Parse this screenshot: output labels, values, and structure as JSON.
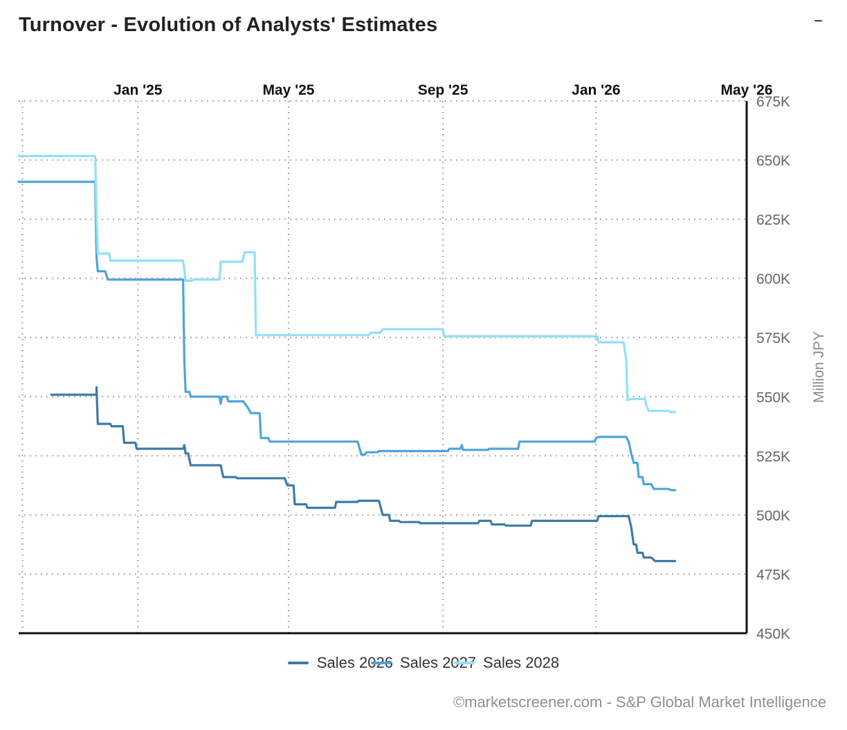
{
  "header": {
    "title": "Turnover - Evolution of Analysts' Estimates",
    "minimize_label": "–"
  },
  "footer": {
    "credit": "©marketscreener.com - S&P Global Market Intelligence"
  },
  "chart_data": {
    "type": "line",
    "title": "Turnover - Evolution of Analysts' Estimates",
    "ylabel": "Million JPY",
    "xlabel": "",
    "x_axis_position": "top",
    "y_axis_position": "right",
    "grid": true,
    "legend_placement": "bottom-center",
    "xlim": [
      "2024-09-28",
      "2026-05-01"
    ],
    "ylim": [
      450000,
      675000
    ],
    "x_ticks": [
      {
        "date": "2025-01-01",
        "label": "Jan '25"
      },
      {
        "date": "2025-05-01",
        "label": "May '25"
      },
      {
        "date": "2025-09-01",
        "label": "Sep '25"
      },
      {
        "date": "2026-01-01",
        "label": "Jan '26"
      },
      {
        "date": "2026-05-01",
        "label": "May '26"
      }
    ],
    "y_ticks": [
      {
        "value": 450000,
        "label": "450K"
      },
      {
        "value": 475000,
        "label": "475K"
      },
      {
        "value": 500000,
        "label": "500K"
      },
      {
        "value": 525000,
        "label": "525K"
      },
      {
        "value": 550000,
        "label": "550K"
      },
      {
        "value": 575000,
        "label": "575K"
      },
      {
        "value": 600000,
        "label": "600K"
      },
      {
        "value": 625000,
        "label": "625K"
      },
      {
        "value": 650000,
        "label": "650K"
      },
      {
        "value": 675000,
        "label": "675K"
      }
    ],
    "series": [
      {
        "name": "Sales 2026",
        "color": "#3d7aa8",
        "points": [
          [
            "2024-10-24",
            550800
          ],
          [
            "2024-11-29",
            550800
          ],
          [
            "2024-11-29",
            554000
          ],
          [
            "2024-11-30",
            538500
          ],
          [
            "2024-12-10",
            538500
          ],
          [
            "2024-12-11",
            537500
          ],
          [
            "2024-12-20",
            537500
          ],
          [
            "2024-12-21",
            530500
          ],
          [
            "2024-12-30",
            530500
          ],
          [
            "2024-12-31",
            528000
          ],
          [
            "2025-02-06",
            528000
          ],
          [
            "2025-02-07",
            529500
          ],
          [
            "2025-02-08",
            526000
          ],
          [
            "2025-02-10",
            526000
          ],
          [
            "2025-02-12",
            521000
          ],
          [
            "2025-03-08",
            521000
          ],
          [
            "2025-03-10",
            516000
          ],
          [
            "2025-03-20",
            516000
          ],
          [
            "2025-03-21",
            515500
          ],
          [
            "2025-04-28",
            515500
          ],
          [
            "2025-04-30",
            512500
          ],
          [
            "2025-05-05",
            512500
          ],
          [
            "2025-05-06",
            504500
          ],
          [
            "2025-05-15",
            504500
          ],
          [
            "2025-05-16",
            503000
          ],
          [
            "2025-06-07",
            503000
          ],
          [
            "2025-06-08",
            505500
          ],
          [
            "2025-06-25",
            505500
          ],
          [
            "2025-06-26",
            506000
          ],
          [
            "2025-07-12",
            506000
          ],
          [
            "2025-07-15",
            500000
          ],
          [
            "2025-07-20",
            500000
          ],
          [
            "2025-07-21",
            497500
          ],
          [
            "2025-07-28",
            497500
          ],
          [
            "2025-07-29",
            497000
          ],
          [
            "2025-08-13",
            497000
          ],
          [
            "2025-08-14",
            496500
          ],
          [
            "2025-09-29",
            496500
          ],
          [
            "2025-09-30",
            497500
          ],
          [
            "2025-10-09",
            497500
          ],
          [
            "2025-10-10",
            496000
          ],
          [
            "2025-10-20",
            496000
          ],
          [
            "2025-10-21",
            495500
          ],
          [
            "2025-11-10",
            495500
          ],
          [
            "2025-11-11",
            497500
          ],
          [
            "2026-01-02",
            497500
          ],
          [
            "2026-01-03",
            499500
          ],
          [
            "2026-01-27",
            499500
          ],
          [
            "2026-01-29",
            495000
          ],
          [
            "2026-01-31",
            487500
          ],
          [
            "2026-02-02",
            487500
          ],
          [
            "2026-02-03",
            484000
          ],
          [
            "2026-02-07",
            484000
          ],
          [
            "2026-02-08",
            482000
          ],
          [
            "2026-02-14",
            482000
          ],
          [
            "2026-02-16",
            481000
          ],
          [
            "2026-02-17",
            480500
          ],
          [
            "2026-03-05",
            480500
          ]
        ]
      },
      {
        "name": "Sales 2027",
        "color": "#4fa3db",
        "points": [
          [
            "2024-09-28",
            640800
          ],
          [
            "2024-11-28",
            640800
          ],
          [
            "2024-11-29",
            609000
          ],
          [
            "2024-11-30",
            603000
          ],
          [
            "2024-12-06",
            603000
          ],
          [
            "2024-12-08",
            599500
          ],
          [
            "2025-02-05",
            599500
          ],
          [
            "2025-02-06",
            599500
          ],
          [
            "2025-02-07",
            565000
          ],
          [
            "2025-02-08",
            552000
          ],
          [
            "2025-02-11",
            552000
          ],
          [
            "2025-02-12",
            550000
          ],
          [
            "2025-03-07",
            550000
          ],
          [
            "2025-03-08",
            547000
          ],
          [
            "2025-03-09",
            550000
          ],
          [
            "2025-03-13",
            550000
          ],
          [
            "2025-03-14",
            548000
          ],
          [
            "2025-03-26",
            548000
          ],
          [
            "2025-03-30",
            545000
          ],
          [
            "2025-04-01",
            543000
          ],
          [
            "2025-04-08",
            543000
          ],
          [
            "2025-04-09",
            532500
          ],
          [
            "2025-04-15",
            532500
          ],
          [
            "2025-04-16",
            531000
          ],
          [
            "2025-06-25",
            531000
          ],
          [
            "2025-06-28",
            525500
          ],
          [
            "2025-07-01",
            525500
          ],
          [
            "2025-07-02",
            526500
          ],
          [
            "2025-07-11",
            526500
          ],
          [
            "2025-07-12",
            527000
          ],
          [
            "2025-09-05",
            527000
          ],
          [
            "2025-09-06",
            528000
          ],
          [
            "2025-09-15",
            528000
          ],
          [
            "2025-09-16",
            529500
          ],
          [
            "2025-09-17",
            527500
          ],
          [
            "2025-10-07",
            527500
          ],
          [
            "2025-10-08",
            528000
          ],
          [
            "2025-10-31",
            528000
          ],
          [
            "2025-11-01",
            531000
          ],
          [
            "2025-12-31",
            531000
          ],
          [
            "2026-01-01",
            532500
          ],
          [
            "2026-01-03",
            533000
          ],
          [
            "2026-01-25",
            533000
          ],
          [
            "2026-01-27",
            531000
          ],
          [
            "2026-01-29",
            526000
          ],
          [
            "2026-01-31",
            522000
          ],
          [
            "2026-02-03",
            522000
          ],
          [
            "2026-02-04",
            516000
          ],
          [
            "2026-02-07",
            516000
          ],
          [
            "2026-02-08",
            513000
          ],
          [
            "2026-02-14",
            513000
          ],
          [
            "2026-02-16",
            511000
          ],
          [
            "2026-02-27",
            511000
          ],
          [
            "2026-03-02",
            510500
          ],
          [
            "2026-03-05",
            510500
          ]
        ]
      },
      {
        "name": "Sales 2028",
        "color": "#8fe0f8",
        "points": [
          [
            "2024-09-28",
            651700
          ],
          [
            "2024-11-28",
            651700
          ],
          [
            "2024-11-29",
            626000
          ],
          [
            "2024-11-30",
            610500
          ],
          [
            "2024-12-09",
            610500
          ],
          [
            "2024-12-10",
            607500
          ],
          [
            "2025-02-06",
            607500
          ],
          [
            "2025-02-08",
            599000
          ],
          [
            "2025-02-13",
            599000
          ],
          [
            "2025-02-14",
            599500
          ],
          [
            "2025-03-07",
            599500
          ],
          [
            "2025-03-08",
            607000
          ],
          [
            "2025-03-25",
            607000
          ],
          [
            "2025-03-27",
            611000
          ],
          [
            "2025-04-04",
            611000
          ],
          [
            "2025-04-05",
            576000
          ],
          [
            "2025-07-04",
            576000
          ],
          [
            "2025-07-05",
            577000
          ],
          [
            "2025-07-13",
            577000
          ],
          [
            "2025-07-15",
            578500
          ],
          [
            "2025-08-29",
            578500
          ],
          [
            "2025-09-01",
            578500
          ],
          [
            "2025-09-02",
            575500
          ],
          [
            "2026-01-02",
            575500
          ],
          [
            "2026-01-03",
            573000
          ],
          [
            "2026-01-23",
            573000
          ],
          [
            "2026-01-25",
            566000
          ],
          [
            "2026-01-26",
            548500
          ],
          [
            "2026-01-29",
            549000
          ],
          [
            "2026-02-09",
            549000
          ],
          [
            "2026-02-10",
            546500
          ],
          [
            "2026-02-12",
            544000
          ],
          [
            "2026-02-28",
            544000
          ],
          [
            "2026-03-01",
            543500
          ],
          [
            "2026-03-05",
            543500
          ]
        ]
      }
    ]
  }
}
